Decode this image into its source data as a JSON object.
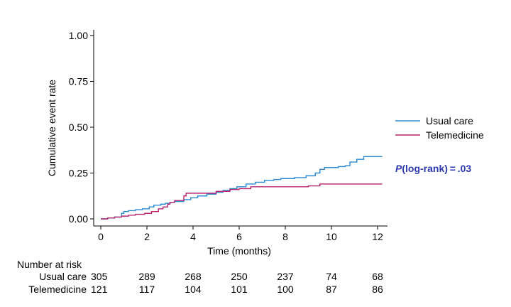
{
  "chart_data": {
    "type": "line",
    "subtype": "kaplan-meier cumulative event (step)",
    "xlabel": "Time (months)",
    "ylabel": "Cumulative event rate",
    "xlim": [
      0,
      12
    ],
    "ylim": [
      0,
      1
    ],
    "x_ticks": [
      0,
      2,
      4,
      6,
      8,
      10,
      12
    ],
    "x_tick_labels": [
      "0",
      "2",
      "4",
      "6",
      "8",
      "10",
      "12"
    ],
    "y_ticks": [
      0,
      0.25,
      0.5,
      0.75,
      1.0
    ],
    "y_tick_labels": [
      "0.00",
      "0.25",
      "0.50",
      "0.75",
      "1.00"
    ],
    "legend_position": "right",
    "series": [
      {
        "name": "Usual care",
        "color": "#2a8ad4",
        "steps": [
          [
            0,
            0
          ],
          [
            0.3,
            0.005
          ],
          [
            0.6,
            0.01
          ],
          [
            0.9,
            0.03
          ],
          [
            1.0,
            0.04
          ],
          [
            1.2,
            0.045
          ],
          [
            1.5,
            0.05
          ],
          [
            1.8,
            0.055
          ],
          [
            2.1,
            0.065
          ],
          [
            2.3,
            0.075
          ],
          [
            2.6,
            0.08
          ],
          [
            2.8,
            0.085
          ],
          [
            3.0,
            0.09
          ],
          [
            3.2,
            0.095
          ],
          [
            3.6,
            0.105
          ],
          [
            3.9,
            0.115
          ],
          [
            4.2,
            0.125
          ],
          [
            4.6,
            0.135
          ],
          [
            5.0,
            0.145
          ],
          [
            5.3,
            0.155
          ],
          [
            5.6,
            0.165
          ],
          [
            5.9,
            0.175
          ],
          [
            6.3,
            0.19
          ],
          [
            6.7,
            0.2
          ],
          [
            7.1,
            0.21
          ],
          [
            7.5,
            0.215
          ],
          [
            7.8,
            0.22
          ],
          [
            8.4,
            0.225
          ],
          [
            8.9,
            0.235
          ],
          [
            9.3,
            0.25
          ],
          [
            9.5,
            0.27
          ],
          [
            9.7,
            0.28
          ],
          [
            10.3,
            0.285
          ],
          [
            10.6,
            0.29
          ],
          [
            10.8,
            0.31
          ],
          [
            11.1,
            0.325
          ],
          [
            11.4,
            0.34
          ],
          [
            12.2,
            0.34
          ]
        ]
      },
      {
        "name": "Telemedicine",
        "color": "#b8256e",
        "steps": [
          [
            0,
            0
          ],
          [
            0.3,
            0.005
          ],
          [
            0.6,
            0.01
          ],
          [
            0.9,
            0.015
          ],
          [
            1.2,
            0.02
          ],
          [
            1.5,
            0.025
          ],
          [
            1.9,
            0.03
          ],
          [
            2.2,
            0.04
          ],
          [
            2.5,
            0.055
          ],
          [
            2.7,
            0.065
          ],
          [
            2.9,
            0.08
          ],
          [
            3.0,
            0.09
          ],
          [
            3.2,
            0.1
          ],
          [
            3.6,
            0.125
          ],
          [
            3.7,
            0.14
          ],
          [
            4.6,
            0.14
          ],
          [
            5.0,
            0.15
          ],
          [
            5.6,
            0.16
          ],
          [
            6.0,
            0.165
          ],
          [
            6.5,
            0.175
          ],
          [
            8.2,
            0.175
          ],
          [
            9.0,
            0.18
          ],
          [
            9.5,
            0.19
          ],
          [
            12.2,
            0.19
          ]
        ]
      }
    ],
    "annotation": {
      "prefix": "P",
      "suffix": "(log-rank) = .03",
      "color": "#2d3ab0"
    },
    "risk_table": {
      "title": "Number at risk",
      "times": [
        0,
        2,
        4,
        6,
        8,
        10,
        12
      ],
      "rows": [
        {
          "label": "Usual care",
          "values": [
            "305",
            "289",
            "268",
            "250",
            "237",
            "74",
            "68"
          ]
        },
        {
          "label": "Telemedicine",
          "values": [
            "121",
            "117",
            "104",
            "101",
            "100",
            "87",
            "86"
          ]
        }
      ]
    }
  }
}
